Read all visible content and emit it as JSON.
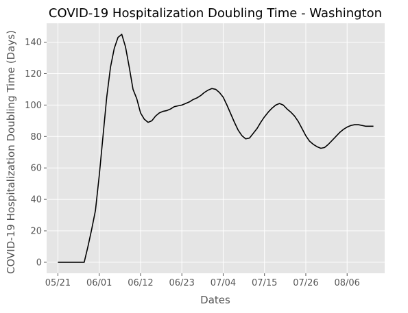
{
  "chart_data": {
    "type": "line",
    "title": "COVID-19 Hospitalization Doubling Time - Washington",
    "xlabel": "Dates",
    "ylabel": "COVID-19 Hospitalization Doubling Time (Days)",
    "x_tick_labels": [
      "05/21",
      "06/01",
      "06/12",
      "06/23",
      "07/04",
      "07/15",
      "07/26",
      "08/06"
    ],
    "x_tick_values": [
      "05/21",
      "06/01",
      "06/12",
      "06/23",
      "07/04",
      "07/15",
      "07/26",
      "08/06"
    ],
    "y_tick_labels": [
      "0",
      "20",
      "40",
      "60",
      "80",
      "100",
      "120",
      "140"
    ],
    "y_tick_values": [
      0,
      20,
      40,
      60,
      80,
      100,
      120,
      140
    ],
    "xlim": [
      "05/18",
      "08/16"
    ],
    "ylim": [
      -7,
      152
    ],
    "grid": true,
    "background": "#E5E5E5",
    "line_color": "#000000",
    "series": [
      {
        "x": [
          "05/21",
          "05/22",
          "05/23",
          "05/24",
          "05/25",
          "05/26",
          "05/27",
          "05/28",
          "05/29",
          "05/30",
          "05/31",
          "06/01",
          "06/02",
          "06/03",
          "06/04",
          "06/05",
          "06/06",
          "06/07",
          "06/08",
          "06/09",
          "06/10",
          "06/11",
          "06/12",
          "06/13",
          "06/14",
          "06/15",
          "06/16",
          "06/17",
          "06/18",
          "06/19",
          "06/20",
          "06/21",
          "06/22",
          "06/23",
          "06/24",
          "06/25",
          "06/26",
          "06/27",
          "06/28",
          "06/29",
          "06/30",
          "07/01",
          "07/02",
          "07/03",
          "07/04",
          "07/05",
          "07/06",
          "07/07",
          "07/08",
          "07/09",
          "07/10",
          "07/11",
          "07/12",
          "07/13",
          "07/14",
          "07/15",
          "07/16",
          "07/17",
          "07/18",
          "07/19",
          "07/20",
          "07/21",
          "07/22",
          "07/23",
          "07/24",
          "07/25",
          "07/26",
          "07/27",
          "07/28",
          "07/29",
          "07/30",
          "07/31",
          "08/01",
          "08/02",
          "08/03",
          "08/04",
          "08/05",
          "08/06",
          "08/07",
          "08/08",
          "08/09",
          "08/10",
          "08/11",
          "08/12",
          "08/13"
        ],
        "values": [
          0,
          0,
          0,
          0,
          0,
          0,
          0,
          0,
          10,
          21,
          33,
          55,
          80,
          105,
          124,
          136,
          143,
          145,
          137,
          124,
          110,
          104,
          95,
          91,
          89,
          90,
          93,
          95,
          96,
          96.5,
          97.5,
          99,
          99.5,
          100,
          101,
          102,
          103.5,
          104.5,
          106,
          108,
          109.5,
          110.5,
          110,
          108,
          105,
          100,
          94.5,
          89,
          84,
          80.5,
          78.5,
          79,
          82,
          85,
          89,
          92.5,
          95.5,
          98,
          100,
          101,
          100,
          97.5,
          95.5,
          93,
          89.5,
          85,
          80.5,
          77,
          75,
          73.5,
          72.5,
          73,
          75,
          77.5,
          80,
          82.5,
          84.5,
          86,
          87,
          87.5,
          87.5,
          87,
          86.5,
          86.5,
          86.5
        ]
      }
    ]
  }
}
